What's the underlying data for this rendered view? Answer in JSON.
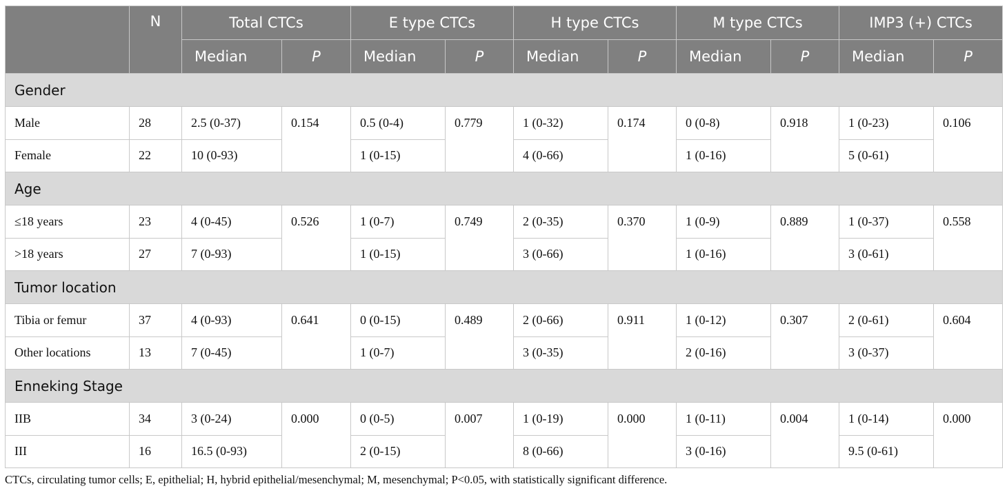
{
  "header": {
    "n": "N",
    "groups": [
      "Total CTCs",
      "E type CTCs",
      "H type CTCs",
      "M type CTCs",
      "IMP3 (+) CTCs"
    ],
    "median": "Median",
    "p": "P"
  },
  "sections": [
    {
      "title": "Gender",
      "rows": [
        {
          "label": "Male",
          "n": "28",
          "total": "2.5 (0-37)",
          "e": "0.5 (0-4)",
          "h": "1 (0-32)",
          "m": "0 (0-8)",
          "imp3": "1 (0-23)"
        },
        {
          "label": "Female",
          "n": "22",
          "total": "10 (0-93)",
          "e": "1 (0-15)",
          "h": "4 (0-66)",
          "m": "1 (0-16)",
          "imp3": "5 (0-61)"
        }
      ],
      "p": {
        "total": "0.154",
        "e": "0.779",
        "h": "0.174",
        "m": "0.918",
        "imp3": "0.106"
      }
    },
    {
      "title": "Age",
      "rows": [
        {
          "label": "≤18 years",
          "n": "23",
          "total": "4 (0-45)",
          "e": "1 (0-7)",
          "h": "2 (0-35)",
          "m": "1 (0-9)",
          "imp3": "1 (0-37)"
        },
        {
          "label": ">18 years",
          "n": "27",
          "total": "7 (0-93)",
          "e": "1 (0-15)",
          "h": "3 (0-66)",
          "m": "1 (0-16)",
          "imp3": "3 (0-61)"
        }
      ],
      "p": {
        "total": "0.526",
        "e": "0.749",
        "h": "0.370",
        "m": "0.889",
        "imp3": "0.558"
      }
    },
    {
      "title": "Tumor location",
      "rows": [
        {
          "label": "Tibia or femur",
          "n": "37",
          "total": "4 (0-93)",
          "e": "0 (0-15)",
          "h": "2 (0-66)",
          "m": "1 (0-12)",
          "imp3": "2 (0-61)"
        },
        {
          "label": "Other locations",
          "n": "13",
          "total": "7 (0-45)",
          "e": "1 (0-7)",
          "h": "3 (0-35)",
          "m": "2 (0-16)",
          "imp3": "3 (0-37)"
        }
      ],
      "p": {
        "total": "0.641",
        "e": "0.489",
        "h": "0.911",
        "m": "0.307",
        "imp3": "0.604"
      }
    },
    {
      "title": "Enneking Stage",
      "rows": [
        {
          "label": "IIB",
          "n": "34",
          "total": "3 (0-24)",
          "e": "0 (0-5)",
          "h": "1 (0-19)",
          "m": "1 (0-11)",
          "imp3": "1 (0-14)"
        },
        {
          "label": "III",
          "n": "16",
          "total": "16.5 (0-93)",
          "e": "2 (0-15)",
          "h": "8 (0-66)",
          "m": "3 (0-16)",
          "imp3": "9.5 (0-61)"
        }
      ],
      "p": {
        "total": "0.000",
        "e": "0.007",
        "h": "0.000",
        "m": "0.004",
        "imp3": "0.000"
      }
    }
  ],
  "footnote": "CTCs, circulating tumor cells; E, epithelial; H, hybrid epithelial/mesenchymal; M, mesenchymal; P<0.05, with statistically significant difference."
}
